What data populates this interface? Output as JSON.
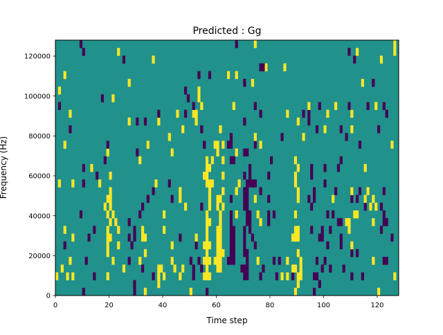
{
  "chart_data": {
    "type": "heatmap",
    "title": "Predicted : Gg",
    "xlabel": "Time step",
    "ylabel": "Frequency (Hz)",
    "xlim": [
      0,
      128
    ],
    "ylim": [
      0,
      128000
    ],
    "n_cols": 128,
    "n_rows": 33,
    "xticks": [
      0,
      20,
      40,
      60,
      80,
      100,
      120
    ],
    "yticks": [
      0,
      20000,
      40000,
      60000,
      80000,
      100000,
      120000
    ],
    "colors": {
      "background": "#21918c",
      "positive": "#fde725",
      "negative": "#440154"
    },
    "values_legend": {
      "background": 0,
      "positive": 1,
      "negative": -1
    },
    "rows": [
      {
        "row": 0,
        "pos": [
          33,
          50,
          89,
          120
        ],
        "neg": [
          10,
          29,
          56,
          96
        ]
      },
      {
        "row": 1,
        "pos": [
          38,
          90
        ],
        "neg": [
          29,
          98
        ]
      },
      {
        "row": 2,
        "pos": [
          0,
          4,
          6,
          19,
          38,
          40,
          46,
          55,
          56,
          57,
          84,
          86,
          90,
          91,
          126
        ],
        "neg": [
          14,
          36,
          51,
          70,
          71,
          76,
          82,
          88,
          96,
          97,
          110,
          114
        ]
      },
      {
        "row": 3,
        "pos": [
          2,
          25,
          38,
          39,
          44,
          47,
          56,
          60,
          61,
          88,
          89,
          91
        ],
        "neg": [
          32,
          51,
          54,
          69,
          70,
          71,
          77,
          99,
          102,
          107
        ]
      },
      {
        "row": 4,
        "pos": [
          5,
          21,
          31,
          43,
          55,
          56,
          57,
          59,
          60,
          61,
          75,
          86,
          91,
          118
        ],
        "neg": [
          11,
          27,
          50,
          53,
          64,
          65,
          66,
          71,
          81,
          83,
          97,
          100,
          122,
          123
        ]
      },
      {
        "row": 5,
        "pos": [
          19,
          33,
          56,
          60,
          61,
          62,
          90
        ],
        "neg": [
          65,
          66,
          70,
          71,
          110,
          112
        ]
      },
      {
        "row": 6,
        "pos": [
          19,
          23,
          43,
          55,
          56,
          57,
          60,
          61,
          110
        ],
        "neg": [
          3,
          28,
          52,
          65,
          66,
          70,
          74,
          101,
          106
        ]
      },
      {
        "row": 7,
        "pos": [
          6,
          19,
          20,
          32,
          33,
          52,
          56,
          60,
          61,
          88,
          89,
          90
        ],
        "neg": [
          12,
          27,
          29,
          46,
          65,
          66,
          70,
          73,
          98,
          99,
          106,
          125
        ]
      },
      {
        "row": 8,
        "pos": [
          3,
          19,
          23,
          32,
          40,
          56,
          60,
          61,
          89,
          90,
          109
        ],
        "neg": [
          14,
          29,
          65,
          66,
          70,
          72,
          95,
          99,
          102,
          121
        ]
      },
      {
        "row": 9,
        "pos": [
          20,
          22,
          56,
          57,
          61,
          76,
          108,
          109,
          118
        ],
        "neg": [
          27,
          65,
          71,
          72,
          79,
          105,
          106,
          122,
          123
        ]
      },
      {
        "row": 10,
        "pos": [
          19,
          21,
          40,
          56,
          61,
          67,
          75,
          89,
          111,
          112
        ],
        "neg": [
          9,
          31,
          65,
          71,
          72,
          79,
          81,
          101,
          103,
          122
        ]
      },
      {
        "row": 11,
        "pos": [
          18,
          20,
          48,
          57,
          60,
          62,
          117,
          119
        ],
        "neg": [
          32,
          54,
          70,
          71,
          95,
          115,
          121
        ]
      },
      {
        "row": 12,
        "pos": [
          19,
          20,
          46,
          57,
          60,
          61,
          74,
          90,
          103,
          115,
          118
        ],
        "neg": [
          34,
          43,
          65,
          70,
          71,
          79,
          94,
          96,
          110,
          112
        ]
      },
      {
        "row": 13,
        "pos": [
          20,
          46,
          57,
          62,
          67,
          90,
          110,
          116
        ],
        "neg": [
          36,
          70,
          71,
          76,
          96,
          104,
          113,
          122
        ]
      },
      {
        "row": 14,
        "pos": [
          1,
          6,
          16,
          37,
          56,
          57,
          58,
          68,
          89
        ],
        "neg": [
          10,
          42,
          71,
          72,
          73,
          74,
          100
        ]
      },
      {
        "row": 15,
        "pos": [
          20,
          55,
          56,
          62,
          89
        ],
        "neg": [
          15,
          70,
          72,
          79,
          95
        ]
      },
      {
        "row": 16,
        "pos": [
          13,
          56,
          57,
          90,
          115
        ],
        "neg": [
          10,
          72,
          95,
          100,
          105
        ]
      },
      {
        "row": 17,
        "pos": [
          31,
          56,
          58,
          62,
          89
        ],
        "neg": [
          18,
          65,
          66,
          80,
          106
        ]
      },
      {
        "row": 18,
        "pos": [
          19,
          43,
          60,
          67
        ],
        "neg": [
          30,
          70,
          71
        ]
      },
      {
        "row": 19,
        "pos": [
          3,
          34,
          59,
          60,
          62,
          76,
          125
        ],
        "neg": [
          19,
          55,
          64,
          65,
          74,
          113
        ]
      },
      {
        "row": 20,
        "pos": [
          42,
          74,
          92
        ],
        "neg": [
          65,
          84,
          108
        ]
      },
      {
        "row": 21,
        "pos": [
          47,
          61,
          100,
          110
        ],
        "neg": [
          5,
          54,
          97,
          106,
          120
        ]
      },
      {
        "row": 22,
        "pos": [
          27,
          38,
          52,
          90
        ],
        "neg": [
          30,
          33,
          70,
          94
        ]
      },
      {
        "row": 23,
        "pos": [
          5,
          45,
          51,
          52,
          86,
          101,
          110
        ],
        "neg": [
          38,
          48,
          76,
          92,
          94,
          123
        ]
      },
      {
        "row": 24,
        "pos": [
          54,
          66,
          94,
          104,
          119
        ],
        "neg": [
          1,
          51,
          74,
          98,
          109,
          116,
          122
        ]
      },
      {
        "row": 25,
        "pos": [
          21,
          53
        ],
        "neg": [
          17,
          49
        ]
      },
      {
        "row": 26,
        "pos": [
          1,
          53
        ],
        "neg": [
          48
        ]
      },
      {
        "row": 27,
        "pos": [
          27,
          73,
          114
        ],
        "neg": [
          70,
          118
        ]
      },
      {
        "row": 28,
        "pos": [
          3,
          64,
          67
        ],
        "neg": [
          53,
          57
        ]
      },
      {
        "row": 29,
        "pos": [
          78,
          85
        ],
        "neg": [
          76,
          77
        ]
      },
      {
        "row": 30,
        "pos": [
          36,
          121
        ],
        "neg": [
          25,
          111
        ]
      },
      {
        "row": 31,
        "pos": [
          23,
          112,
          126
        ],
        "neg": [
          10,
          109
        ]
      },
      {
        "row": 32,
        "pos": [
          74,
          126
        ],
        "neg": [
          9,
          67
        ]
      }
    ]
  }
}
